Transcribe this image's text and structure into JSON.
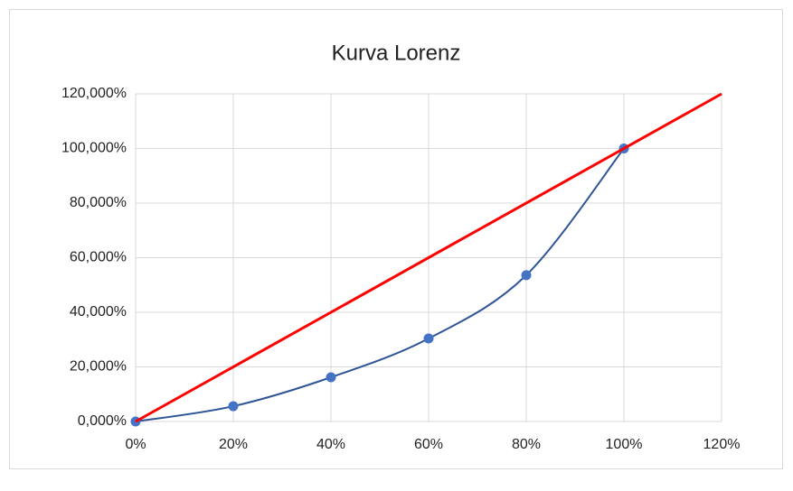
{
  "chart_data": {
    "type": "scatter",
    "title": "Kurva Lorenz",
    "xlim": [
      0,
      120
    ],
    "xticks": [
      {
        "value": 0,
        "label": "0%"
      },
      {
        "value": 20,
        "label": "20%"
      },
      {
        "value": 40,
        "label": "40%"
      },
      {
        "value": 60,
        "label": "60%"
      },
      {
        "value": 80,
        "label": "80%"
      },
      {
        "value": 100,
        "label": "100%"
      },
      {
        "value": 120,
        "label": "120%"
      }
    ],
    "ylim": [
      0,
      120
    ],
    "yticks": [
      {
        "value": 0,
        "label": "0,000%"
      },
      {
        "value": 20,
        "label": "20,000%"
      },
      {
        "value": 40,
        "label": "40,000%"
      },
      {
        "value": 60,
        "label": "60,000%"
      },
      {
        "value": 80,
        "label": "80,000%"
      },
      {
        "value": 100,
        "label": "100,000%"
      },
      {
        "value": 120,
        "label": "120,000%"
      }
    ],
    "grid": true,
    "series": [
      {
        "color": "#2f5597",
        "marker_color": "#4472c4",
        "markers": true,
        "smooth": true,
        "x": [
          0,
          20,
          40,
          60,
          80,
          100
        ],
        "values": [
          0,
          5.6,
          16.2,
          30.4,
          53.6,
          100
        ]
      },
      {
        "color": "#ff0000",
        "markers": false,
        "smooth": false,
        "x": [
          0,
          120
        ],
        "values": [
          0,
          120
        ]
      }
    ]
  }
}
